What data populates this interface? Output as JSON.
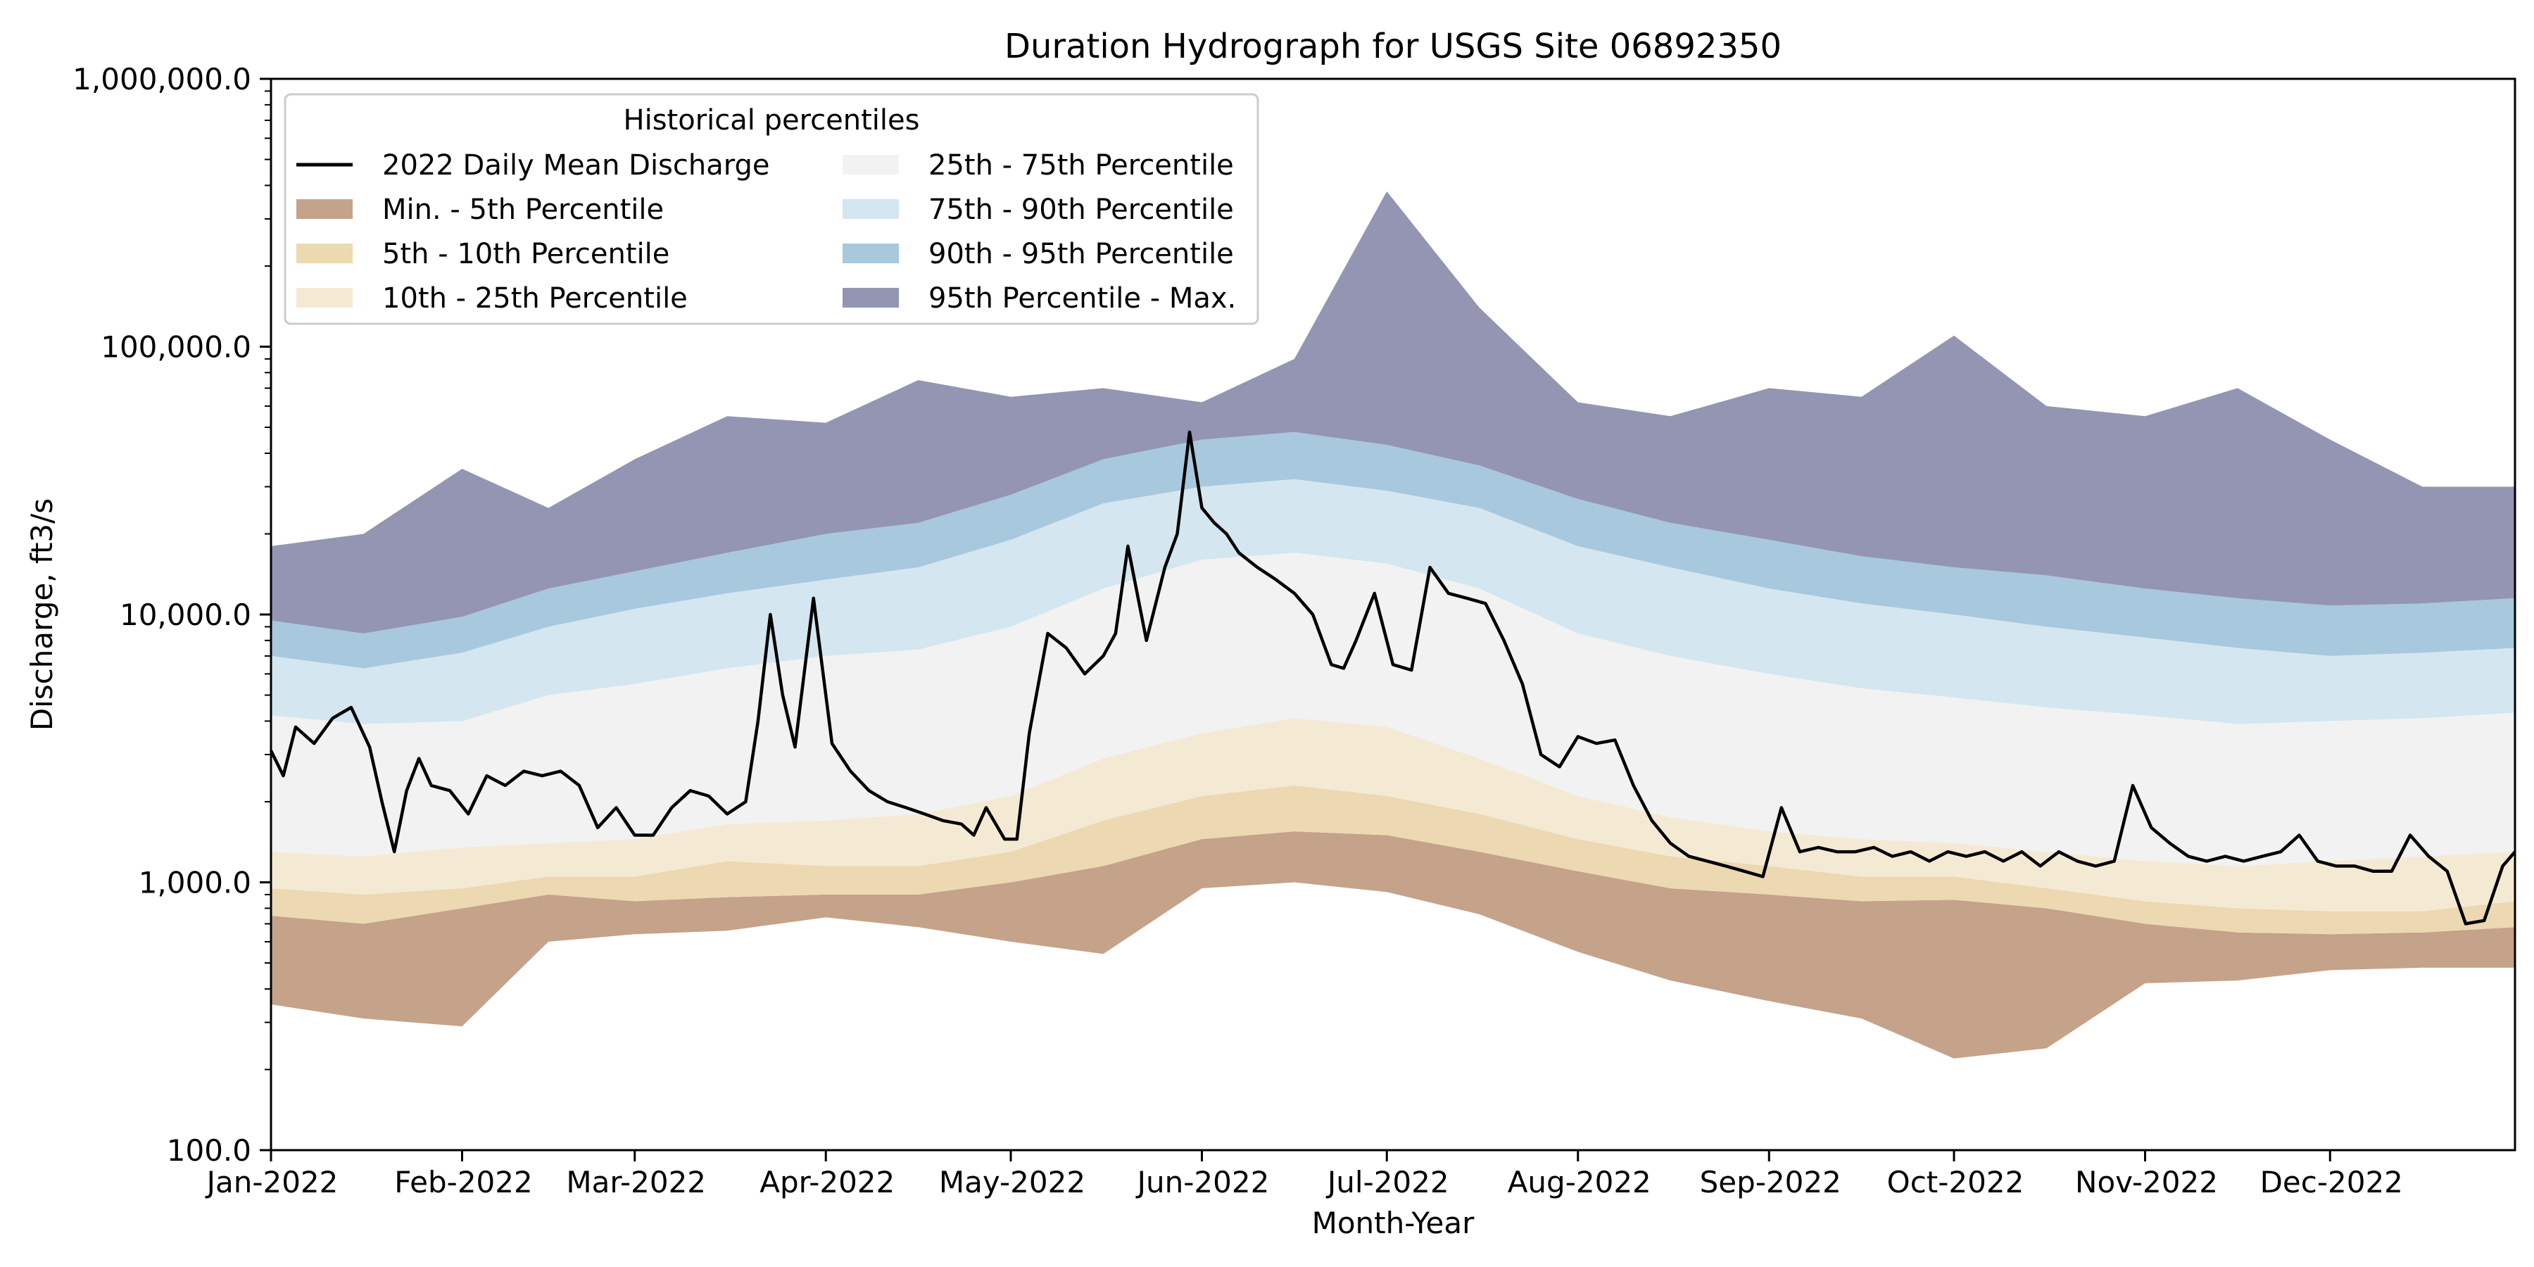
{
  "chart_data": {
    "type": "area",
    "title": "Duration Hydrograph for USGS Site 06892350",
    "xlabel": "Month-Year",
    "ylabel": "Discharge, ft3/s",
    "y_scale": "log",
    "ylim": [
      100,
      1000000
    ],
    "y_ticks": [
      100,
      1000,
      10000,
      100000,
      1000000
    ],
    "y_tick_labels": [
      "100.0",
      "1,000.0",
      "10,000.0",
      "100,000.0",
      "1,000,000.0"
    ],
    "x_range_days": [
      1,
      365
    ],
    "x_ticks": [
      {
        "day": 1,
        "label": "Jan-2022"
      },
      {
        "day": 32,
        "label": "Feb-2022"
      },
      {
        "day": 60,
        "label": "Mar-2022"
      },
      {
        "day": 91,
        "label": "Apr-2022"
      },
      {
        "day": 121,
        "label": "May-2022"
      },
      {
        "day": 152,
        "label": "Jun-2022"
      },
      {
        "day": 182,
        "label": "Jul-2022"
      },
      {
        "day": 213,
        "label": "Aug-2022"
      },
      {
        "day": 244,
        "label": "Sep-2022"
      },
      {
        "day": 274,
        "label": "Oct-2022"
      },
      {
        "day": 305,
        "label": "Nov-2022"
      },
      {
        "day": 335,
        "label": "Dec-2022"
      }
    ],
    "legend": {
      "title": "Historical percentiles",
      "placement": "upper-left",
      "entries": [
        {
          "label": "2022 Daily Mean Discharge",
          "kind": "line",
          "color": "#000000"
        },
        {
          "label": "Min. - 5th Percentile",
          "kind": "patch",
          "color": "#c4a38a"
        },
        {
          "label": "5th - 10th Percentile",
          "kind": "patch",
          "color": "#ecd8b1"
        },
        {
          "label": "10th - 25th Percentile",
          "kind": "patch",
          "color": "#f4e9d3"
        },
        {
          "label": "25th - 75th Percentile",
          "kind": "patch",
          "color": "#f2f2f2"
        },
        {
          "label": "75th - 90th Percentile",
          "kind": "patch",
          "color": "#d4e6f0"
        },
        {
          "label": "90th - 95th Percentile",
          "kind": "patch",
          "color": "#a8c8dd"
        },
        {
          "label": "95th Percentile - Max.",
          "kind": "patch",
          "color": "#9494b3"
        }
      ]
    },
    "bands": {
      "day": [
        1,
        16,
        32,
        46,
        60,
        75,
        91,
        106,
        121,
        136,
        152,
        167,
        182,
        197,
        213,
        228,
        244,
        259,
        274,
        289,
        305,
        320,
        335,
        350,
        365
      ],
      "min": [
        350,
        310,
        290,
        600,
        640,
        660,
        740,
        680,
        600,
        540,
        950,
        1000,
        920,
        760,
        550,
        430,
        360,
        310,
        220,
        240,
        420,
        430,
        470,
        480,
        480
      ],
      "p05": [
        750,
        700,
        800,
        900,
        850,
        880,
        900,
        900,
        1000,
        1150,
        1450,
        1550,
        1500,
        1300,
        1100,
        950,
        900,
        850,
        860,
        800,
        700,
        650,
        640,
        650,
        680
      ],
      "p10": [
        950,
        900,
        950,
        1050,
        1050,
        1200,
        1150,
        1150,
        1300,
        1700,
        2100,
        2300,
        2100,
        1800,
        1450,
        1250,
        1150,
        1050,
        1050,
        950,
        850,
        800,
        780,
        780,
        850
      ],
      "p25": [
        1300,
        1250,
        1350,
        1400,
        1450,
        1650,
        1700,
        1800,
        2100,
        2900,
        3600,
        4100,
        3800,
        2900,
        2100,
        1750,
        1550,
        1450,
        1400,
        1300,
        1200,
        1150,
        1200,
        1250,
        1300
      ],
      "p75": [
        4200,
        3900,
        4000,
        5000,
        5500,
        6300,
        7000,
        7400,
        9000,
        12500,
        16000,
        17000,
        15500,
        12500,
        8500,
        7000,
        6000,
        5300,
        4900,
        4500,
        4200,
        3900,
        4000,
        4100,
        4300
      ],
      "p90": [
        7000,
        6300,
        7200,
        9000,
        10500,
        12000,
        13500,
        15000,
        19000,
        26000,
        30000,
        32000,
        29000,
        25000,
        18000,
        15000,
        12500,
        11000,
        10000,
        9000,
        8200,
        7500,
        7000,
        7200,
        7500
      ],
      "p95": [
        9500,
        8500,
        9800,
        12500,
        14500,
        17000,
        20000,
        22000,
        28000,
        38000,
        45000,
        48000,
        43000,
        36000,
        27000,
        22000,
        19000,
        16500,
        15000,
        14000,
        12500,
        11500,
        10800,
        11000,
        11500
      ],
      "max": [
        18000,
        20000,
        35000,
        25000,
        38000,
        55000,
        52000,
        75000,
        65000,
        70000,
        62000,
        90000,
        380000,
        140000,
        62000,
        55000,
        70000,
        65000,
        110000,
        60000,
        55000,
        70000,
        45000,
        30000,
        30000
      ]
    },
    "series": [
      {
        "name": "2022 Daily Mean Discharge",
        "day": [
          1,
          3,
          5,
          8,
          11,
          14,
          17,
          19,
          21,
          23,
          25,
          27,
          30,
          33,
          36,
          39,
          42,
          45,
          48,
          51,
          54,
          57,
          60,
          63,
          66,
          69,
          72,
          75,
          78,
          80,
          82,
          84,
          86,
          89,
          92,
          95,
          98,
          101,
          104,
          107,
          110,
          113,
          115,
          117,
          120,
          122,
          124,
          127,
          130,
          133,
          136,
          138,
          140,
          143,
          146,
          148,
          150,
          152,
          154,
          156,
          158,
          161,
          164,
          167,
          170,
          173,
          175,
          177,
          180,
          183,
          186,
          189,
          192,
          195,
          198,
          201,
          204,
          207,
          210,
          213,
          216,
          219,
          222,
          225,
          228,
          231,
          234,
          237,
          240,
          243,
          246,
          249,
          252,
          255,
          258,
          261,
          264,
          267,
          270,
          273,
          276,
          279,
          282,
          285,
          288,
          291,
          294,
          297,
          300,
          303,
          306,
          309,
          312,
          315,
          318,
          321,
          324,
          327,
          330,
          333,
          336,
          339,
          342,
          345,
          348,
          351,
          354,
          357,
          360,
          363,
          365
        ],
        "value": [
          3100,
          2500,
          3800,
          3300,
          4100,
          4500,
          3200,
          2000,
          1300,
          2200,
          2900,
          2300,
          2200,
          1800,
          2500,
          2300,
          2600,
          2500,
          2600,
          2300,
          1600,
          1900,
          1500,
          1500,
          1900,
          2200,
          2100,
          1800,
          2000,
          4000,
          10000,
          5000,
          3200,
          11500,
          3300,
          2600,
          2200,
          2000,
          1900,
          1800,
          1700,
          1650,
          1500,
          1900,
          1450,
          1450,
          3600,
          8500,
          7500,
          6000,
          7000,
          8500,
          18000,
          8000,
          15000,
          20000,
          48000,
          25000,
          22000,
          20000,
          17000,
          15000,
          13500,
          12000,
          10000,
          6500,
          6300,
          8000,
          12000,
          6500,
          6200,
          15000,
          12000,
          11500,
          11000,
          8000,
          5500,
          3000,
          2700,
          3500,
          3300,
          3400,
          2300,
          1700,
          1400,
          1250,
          1200,
          1150,
          1100,
          1050,
          1900,
          1300,
          1350,
          1300,
          1300,
          1350,
          1250,
          1300,
          1200,
          1300,
          1250,
          1300,
          1200,
          1300,
          1150,
          1300,
          1200,
          1150,
          1200,
          2300,
          1600,
          1400,
          1250,
          1200,
          1250,
          1200,
          1250,
          1300,
          1500,
          1200,
          1150,
          1150,
          1100,
          1100,
          1500,
          1250,
          1100,
          700,
          720,
          1150,
          1300
        ]
      }
    ]
  }
}
